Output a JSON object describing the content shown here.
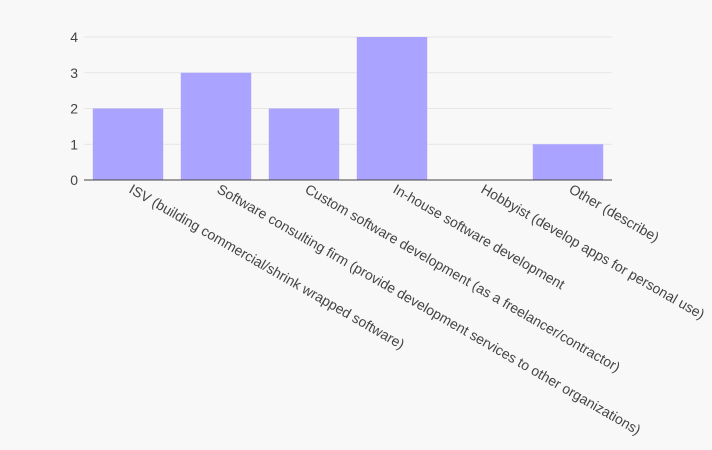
{
  "chart_data": {
    "type": "bar",
    "categories": [
      "ISV (building commercial/shrink wrapped software)",
      "Software consulting firm (provide development services to other organizations)",
      "Custom software development (as a freelancer/contractor)",
      "In-house software development",
      "Hobbyist (develop apps for personal use)",
      "Other (describe)"
    ],
    "values": [
      2,
      3,
      2,
      4,
      0,
      1
    ],
    "ylim": [
      0,
      4
    ],
    "yticks": [
      0,
      1,
      2,
      3,
      4
    ],
    "grid": true,
    "bar_color": "#aaa3ff",
    "grid_color": "#e6e6e6",
    "axis_color": "#444444",
    "background": "#f8f8f8"
  }
}
